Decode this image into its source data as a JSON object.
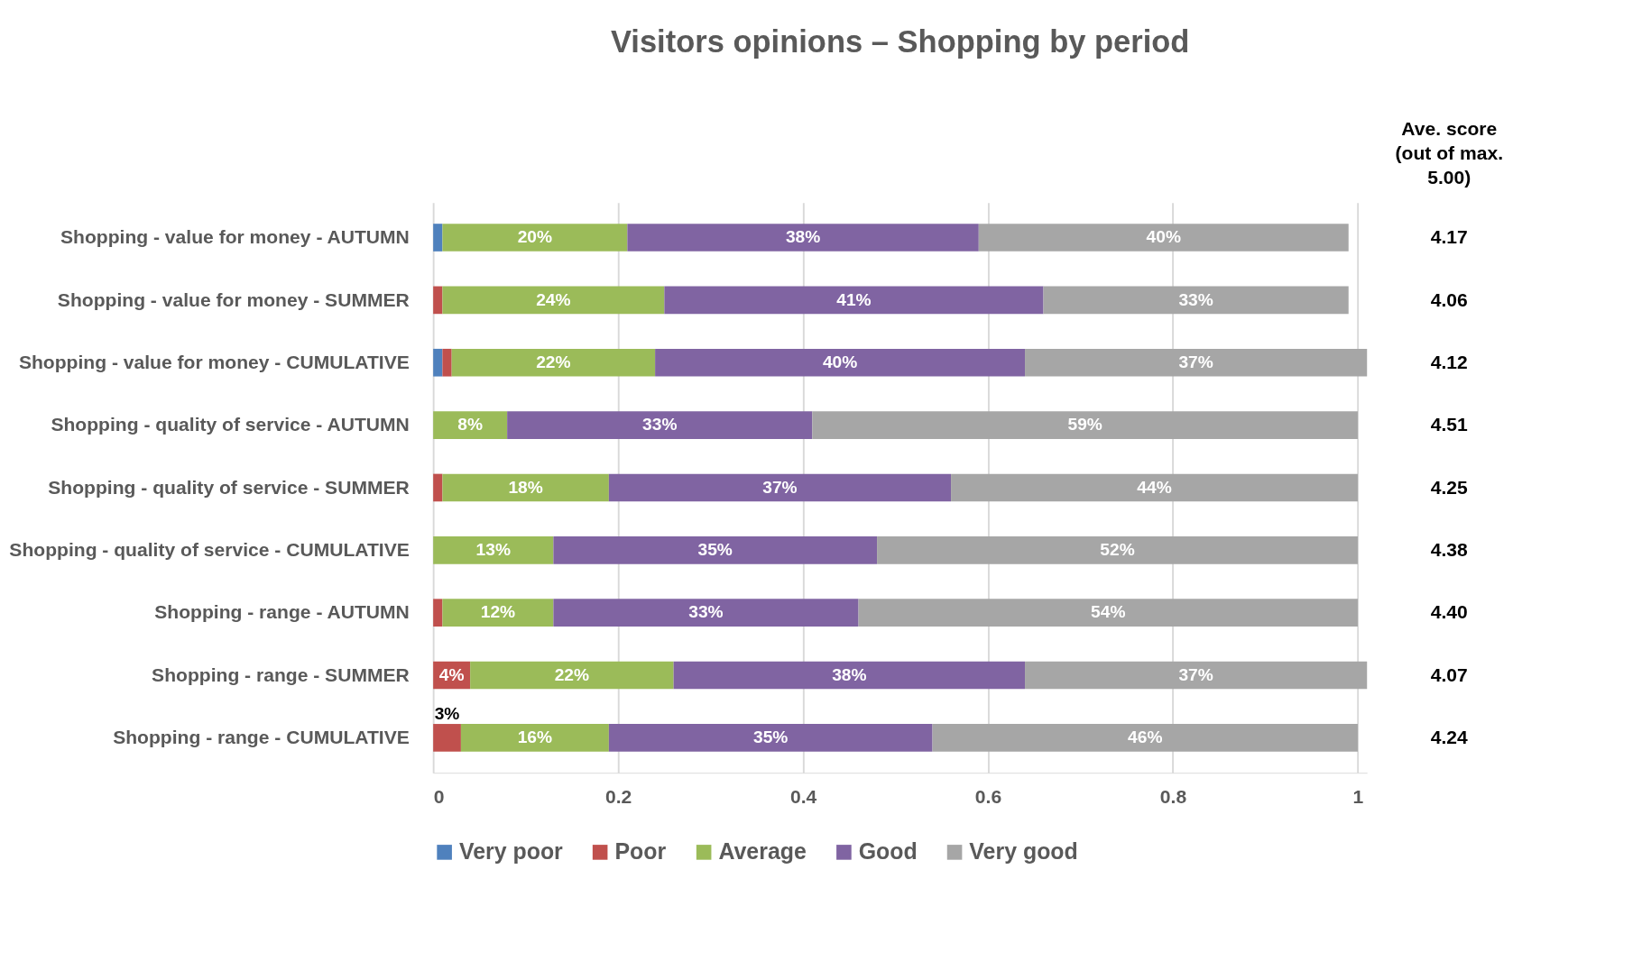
{
  "chart_data": {
    "type": "bar",
    "orientation": "horizontal",
    "stacked": true,
    "title": "Visitors opinions – Shopping by period",
    "categories": [
      "Shopping - value for money - AUTUMN",
      "Shopping - value for money - SUMMER",
      "Shopping - value for money - CUMULATIVE",
      "Shopping - quality of service - AUTUMN",
      "Shopping - quality of service - SUMMER",
      "Shopping - quality of service - CUMULATIVE",
      "Shopping - range - AUTUMN",
      "Shopping - range - SUMMER",
      "Shopping - range - CUMULATIVE"
    ],
    "series": [
      {
        "name": "Very poor",
        "color": "#4f81bd",
        "values": [
          0.01,
          0,
          0.01,
          0,
          0,
          0,
          0,
          0,
          0
        ],
        "value_labels": [
          null,
          null,
          null,
          null,
          null,
          null,
          null,
          null,
          null
        ]
      },
      {
        "name": "Poor",
        "color": "#c0504d",
        "values": [
          0,
          0.01,
          0.01,
          0,
          0.01,
          0,
          0.01,
          0.04,
          0.03
        ],
        "value_labels": [
          null,
          null,
          null,
          null,
          null,
          null,
          null,
          "4%",
          "3%"
        ]
      },
      {
        "name": "Average",
        "color": "#9bbb59",
        "values": [
          0.2,
          0.24,
          0.22,
          0.08,
          0.18,
          0.13,
          0.12,
          0.22,
          0.16
        ],
        "value_labels": [
          "20%",
          "24%",
          "22%",
          "8%",
          "18%",
          "13%",
          "12%",
          "22%",
          "16%"
        ]
      },
      {
        "name": "Good",
        "color": "#8064a2",
        "values": [
          0.38,
          0.41,
          0.4,
          0.33,
          0.37,
          0.35,
          0.33,
          0.38,
          0.35
        ],
        "value_labels": [
          "38%",
          "41%",
          "40%",
          "33%",
          "37%",
          "35%",
          "33%",
          "38%",
          "35%"
        ]
      },
      {
        "name": "Very good",
        "color": "#a6a6a6",
        "values": [
          0.4,
          0.33,
          0.37,
          0.59,
          0.44,
          0.52,
          0.54,
          0.37,
          0.46
        ],
        "value_labels": [
          "40%",
          "33%",
          "37%",
          "59%",
          "44%",
          "52%",
          "54%",
          "37%",
          "46%"
        ]
      }
    ],
    "xlim": [
      0,
      1.01
    ],
    "xticks": [
      0,
      0.2,
      0.4,
      0.6,
      0.8,
      1
    ],
    "grid": "x",
    "legend": "bottom",
    "annotations": [
      "Ave. score (out of max. 5.00)",
      "4.17",
      "4.06",
      "4.12",
      "4.51",
      "4.25",
      "4.38",
      "4.40",
      "4.07",
      "4.24"
    ]
  }
}
